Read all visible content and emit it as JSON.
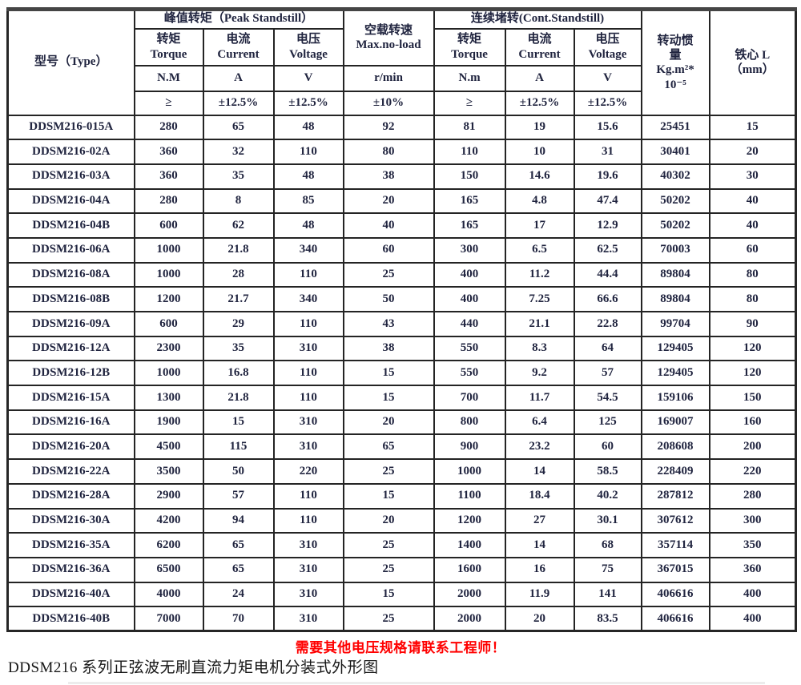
{
  "page": {
    "notice": "需要其他电压规格请联系工程师！",
    "caption": "DDSM216 系列正弦波无刷直流力矩电机分装式外形图",
    "accent_red": "#ff0000",
    "text_color": "#20243f"
  },
  "table": {
    "type_header": "型号（Type）",
    "groups": {
      "peak": "峰值转矩（Peak Standstill）",
      "noload_cn": "空载转速",
      "noload_en": "Max.no-load",
      "cont": "连续堵转(Cont.Standstill)"
    },
    "subcols": {
      "peak_torque": {
        "cn": "转矩",
        "en": "Torque",
        "unit": "N.M",
        "tol": "≥"
      },
      "peak_current": {
        "cn": "电流",
        "en": "Current",
        "unit": "A",
        "tol": "±12.5%"
      },
      "peak_voltage": {
        "cn": "电压",
        "en": "Voltage",
        "unit": "V",
        "tol": "±12.5%"
      },
      "noload": {
        "unit": "r/min",
        "tol": "±10%"
      },
      "cont_torque": {
        "cn": "转矩",
        "en": "Torque",
        "unit": "N.m",
        "tol": "≥"
      },
      "cont_current": {
        "cn": "电流",
        "en": "Current",
        "unit": "A",
        "tol": "±12.5%"
      },
      "cont_voltage": {
        "cn": "电压",
        "en": "Voltage",
        "unit": "V",
        "tol": "±12.5%"
      }
    },
    "inertia_header": {
      "l1": "转动惯",
      "l2": "量",
      "l3": "Kg.m²*",
      "l4": "10⁻⁵"
    },
    "core_header": {
      "l1": "铁心 L",
      "l2": "（mm）"
    },
    "rows": [
      {
        "type": "DDSM216-015A",
        "values": [
          "280",
          "65",
          "48",
          "92",
          "81",
          "19",
          "15.6",
          "25451",
          "15"
        ]
      },
      {
        "type": "DDSM216-02A",
        "values": [
          "360",
          "32",
          "110",
          "80",
          "110",
          "10",
          "31",
          "30401",
          "20"
        ]
      },
      {
        "type": "DDSM216-03A",
        "values": [
          "360",
          "35",
          "48",
          "38",
          "150",
          "14.6",
          "19.6",
          "40302",
          "30"
        ]
      },
      {
        "type": "DDSM216-04A",
        "values": [
          "280",
          "8",
          "85",
          "20",
          "165",
          "4.8",
          "47.4",
          "50202",
          "40"
        ]
      },
      {
        "type": "DDSM216-04B",
        "values": [
          "600",
          "62",
          "48",
          "40",
          "165",
          "17",
          "12.9",
          "50202",
          "40"
        ]
      },
      {
        "type": "DDSM216-06A",
        "values": [
          "1000",
          "21.8",
          "340",
          "60",
          "300",
          "6.5",
          "62.5",
          "70003",
          "60"
        ]
      },
      {
        "type": "DDSM216-08A",
        "values": [
          "1000",
          "28",
          "110",
          "25",
          "400",
          "11.2",
          "44.4",
          "89804",
          "80"
        ]
      },
      {
        "type": "DDSM216-08B",
        "values": [
          "1200",
          "21.7",
          "340",
          "50",
          "400",
          "7.25",
          "66.6",
          "89804",
          "80"
        ]
      },
      {
        "type": "DDSM216-09A",
        "values": [
          "600",
          "29",
          "110",
          "43",
          "440",
          "21.1",
          "22.8",
          "99704",
          "90"
        ]
      },
      {
        "type": "DDSM216-12A",
        "values": [
          "2300",
          "35",
          "310",
          "38",
          "550",
          "8.3",
          "64",
          "129405",
          "120"
        ]
      },
      {
        "type": "DDSM216-12B",
        "values": [
          "1000",
          "16.8",
          "110",
          "15",
          "550",
          "9.2",
          "57",
          "129405",
          "120"
        ]
      },
      {
        "type": "DDSM216-15A",
        "values": [
          "1300",
          "21.8",
          "110",
          "15",
          "700",
          "11.7",
          "54.5",
          "159106",
          "150"
        ]
      },
      {
        "type": "DDSM216-16A",
        "values": [
          "1900",
          "15",
          "310",
          "20",
          "800",
          "6.4",
          "125",
          "169007",
          "160"
        ]
      },
      {
        "type": "DDSM216-20A",
        "values": [
          "4500",
          "115",
          "310",
          "65",
          "900",
          "23.2",
          "60",
          "208608",
          "200"
        ]
      },
      {
        "type": "DDSM216-22A",
        "values": [
          "3500",
          "50",
          "220",
          "25",
          "1000",
          "14",
          "58.5",
          "228409",
          "220"
        ]
      },
      {
        "type": "DDSM216-28A",
        "values": [
          "2900",
          "57",
          "110",
          "15",
          "1100",
          "18.4",
          "40.2",
          "287812",
          "280"
        ]
      },
      {
        "type": "DDSM216-30A",
        "values": [
          "4200",
          "94",
          "110",
          "20",
          "1200",
          "27",
          "30.1",
          "307612",
          "300"
        ]
      },
      {
        "type": "DDSM216-35A",
        "values": [
          "6200",
          "65",
          "310",
          "25",
          "1400",
          "14",
          "68",
          "357114",
          "350"
        ]
      },
      {
        "type": "DDSM216-36A",
        "values": [
          "6500",
          "65",
          "310",
          "25",
          "1600",
          "16",
          "75",
          "367015",
          "360"
        ]
      },
      {
        "type": "DDSM216-40A",
        "values": [
          "4000",
          "24",
          "310",
          "15",
          "2000",
          "11.9",
          "141",
          "406616",
          "400"
        ]
      },
      {
        "type": "DDSM216-40B",
        "values": [
          "7000",
          "70",
          "310",
          "25",
          "2000",
          "20",
          "83.5",
          "406616",
          "400"
        ]
      }
    ]
  }
}
